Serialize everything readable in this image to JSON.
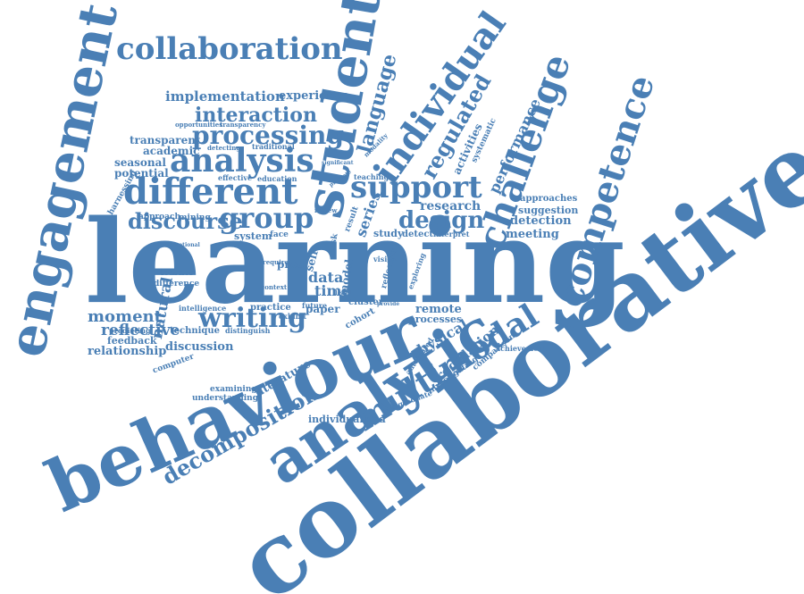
{
  "color": "#4a7fb5",
  "words": {
    "collaborative": "collaborative",
    "learning": "learning",
    "behaviour": "behaviour",
    "analytic": "analytic",
    "engagement": "engagement",
    "student": "student",
    "collaboration": "collaboration",
    "different": "different",
    "analysis": "analysis",
    "support": "support",
    "group": "group",
    "individual": "individual",
    "challenge": "challenge",
    "competence": "competence",
    "multimodal": "multimodal",
    "writing": "writing",
    "processing": "processing",
    "interaction": "interaction",
    "design": "design",
    "discourse": "discourse",
    "decomposition": "decomposition",
    "implementation": "implementation",
    "experience": "experience",
    "moment": "moment",
    "reflective": "reflective",
    "relationship": "relationship",
    "language": "language",
    "regulated": "regulated",
    "performance": "performance",
    "research": "research",
    "detection": "detection",
    "meeting": "meeting",
    "approaches": "approaches",
    "suggestion": "suggestion",
    "physical": "physical",
    "regulation": "regulation",
    "remote": "remote",
    "processes": "processes",
    "individualized": "individualized",
    "literature": "literature",
    "natural": "natural",
    "discussion": "discussion",
    "feedback": "feedback",
    "transparent": "transparent",
    "academic": "academic",
    "seasonal": "seasonal",
    "potential": "potential",
    "harnessing": "harnessing",
    "approach": "approach",
    "mining": "mining",
    "system": "system",
    "face": "face",
    "study": "study",
    "series": "series",
    "data": "data",
    "time": "time",
    "paper": "paper",
    "model": "model",
    "proc": "proc",
    "self": "self",
    "result": "result",
    "task": "task",
    "activities": "activities",
    "systematic": "systematic",
    "learner": "learner",
    "difference": "difference",
    "predicting": "predicting",
    "intelligence": "intelligence",
    "practice": "practice",
    "computer": "computer",
    "technique": "technique",
    "understanding": "understanding",
    "examining": "examining",
    "postgraduate": "postgraduate",
    "investigating": "investigating",
    "comparison": "comparison",
    "achievement": "achievement",
    "automated": "automated",
    "cluster": "cluster",
    "cohort": "cohort",
    "future": "future",
    "exhibit": "exhibit",
    "distinguish": "distinguish",
    "detect": "detect",
    "interpret": "interpret",
    "vision": "vision",
    "reflection": "reflection",
    "exploring": "exploring",
    "education": "education",
    "effective": "effective",
    "teaching": "teaching",
    "detecting": "detecting",
    "traditional": "traditional",
    "opportunities": "opportunities",
    "transparency": "transparency",
    "modality": "modality",
    "significant": "significant",
    "review": "review",
    "promote": "promote",
    "level": "level",
    "context": "context",
    "require": "require",
    "emotional": "emotional",
    "provide": "provide"
  }
}
